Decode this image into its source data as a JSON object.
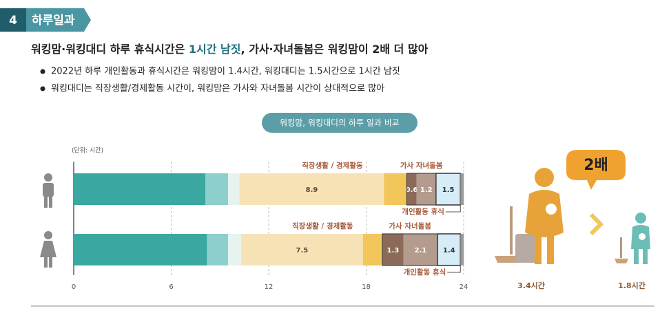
{
  "header": {
    "number": "4",
    "title": "하루일과"
  },
  "headline": {
    "before": "워킹맘·워킹대디 하루 휴식시간은 ",
    "bold": "1시간 남짓",
    "after": ", 가사·자녀돌봄은 워킹맘이 2배 더 많아"
  },
  "bullets": [
    "2022년 하루 개인활동과 휴식시간은 워킹맘이 1.4시간, 워킹대디는 1.5시간으로 1시간 남짓",
    "워킹대디는 직장생활/경제활동 시간이, 워킹맘은 가사와 자녀돌봄 시간이 상대적으로 많아"
  ],
  "chart_data": {
    "type": "stacked-hbar",
    "title": "워킹맘, 워킹대디의 하루 일과 비교",
    "unit": "(단위: 시간)",
    "xlim": [
      0,
      24
    ],
    "xticks": [
      0,
      6,
      12,
      18,
      24
    ],
    "group_labels": {
      "work": "직장생활 / 경제활동",
      "house": "가사 자녀돌봄",
      "personal": "개인활동 휴식"
    },
    "bars": [
      {
        "segments": [
          {
            "value": 8.1,
            "color": "#3aa8a0"
          },
          {
            "value": 1.4,
            "color": "#8ccfcc"
          },
          {
            "value": 0.7,
            "color": "#e6f3ee"
          },
          {
            "value": 8.9,
            "color": "#f7e2b6",
            "show_label": true,
            "text_color": "#5a4a3a"
          },
          {
            "value": 1.4,
            "color": "#f2c65a"
          },
          {
            "value": 0.6,
            "color": "#8b6a5a",
            "show_label": true,
            "text_color": "#ffffff"
          },
          {
            "value": 1.2,
            "color": "#b39c8e",
            "show_label": true,
            "text_color": "#ffffff"
          },
          {
            "value": 1.5,
            "color": "#d6ecf7",
            "show_label": true,
            "text_color": "#333333",
            "outline": true
          },
          {
            "value": 0.2,
            "color": "#9a9a9a"
          }
        ]
      },
      {
        "segments": [
          {
            "value": 8.2,
            "color": "#3aa8a0"
          },
          {
            "value": 1.3,
            "color": "#8ccfcc"
          },
          {
            "value": 0.8,
            "color": "#e6f3ee"
          },
          {
            "value": 7.5,
            "color": "#f7e2b6",
            "show_label": true,
            "text_color": "#5a4a3a"
          },
          {
            "value": 1.2,
            "color": "#f2c65a"
          },
          {
            "value": 1.3,
            "color": "#8b6a5a",
            "show_label": true,
            "text_color": "#ffffff"
          },
          {
            "value": 2.1,
            "color": "#b39c8e",
            "show_label": true,
            "text_color": "#ffffff"
          },
          {
            "value": 1.4,
            "color": "#d6ecf7",
            "show_label": true,
            "text_color": "#333333",
            "outline": true
          },
          {
            "value": 0.2,
            "color": "#9a9a9a"
          }
        ]
      }
    ]
  },
  "comparison": {
    "ratio": "2배",
    "mom": "3.4시간",
    "dad": "1.8시간"
  }
}
